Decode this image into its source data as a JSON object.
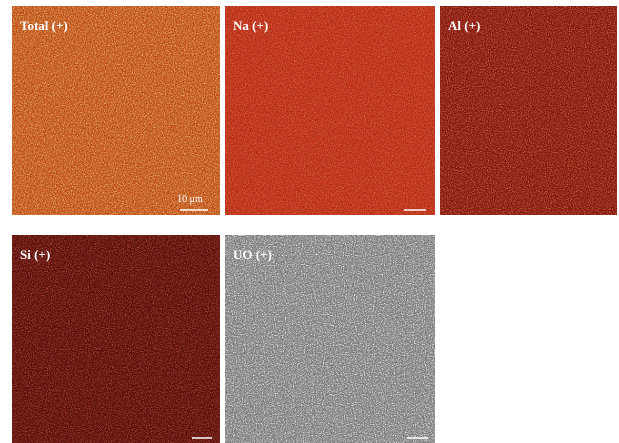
{
  "panels": [
    {
      "label": "Total (+)"
    },
    {
      "label": "Na (+)"
    },
    {
      "label": "Al (+)"
    },
    {
      "label": "Si (+)"
    },
    {
      "label": "UO (+)"
    }
  ],
  "scale_bar": "10 μm"
}
